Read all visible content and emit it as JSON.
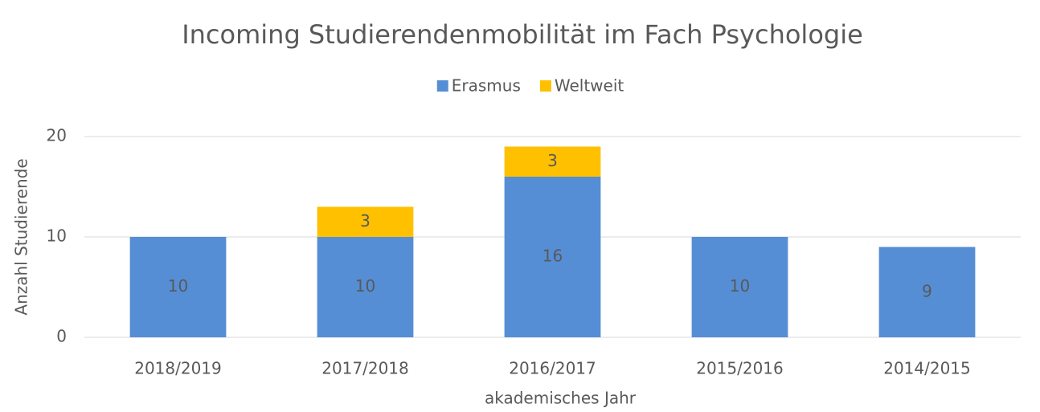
{
  "chart_data": {
    "type": "stacked_bar",
    "title": "Incoming Studierendenmobilität im Fach Psychologie",
    "x_label": "akademisches Jahr",
    "y_label": "Anzahl Studierende",
    "categories": [
      "2018/2019",
      "2017/2018",
      "2016/2017",
      "2015/2016",
      "2014/2015"
    ],
    "series": [
      {
        "name": "Erasmus",
        "color": "#558ed5",
        "values": [
          10,
          10,
          16,
          10,
          9
        ]
      },
      {
        "name": "Weltweit",
        "color": "#ffc000",
        "values": [
          null,
          3,
          3,
          null,
          null
        ]
      }
    ],
    "ylim": [
      0,
      20
    ],
    "yticks": [
      0,
      10,
      20
    ],
    "grid": true,
    "legend": "top"
  }
}
